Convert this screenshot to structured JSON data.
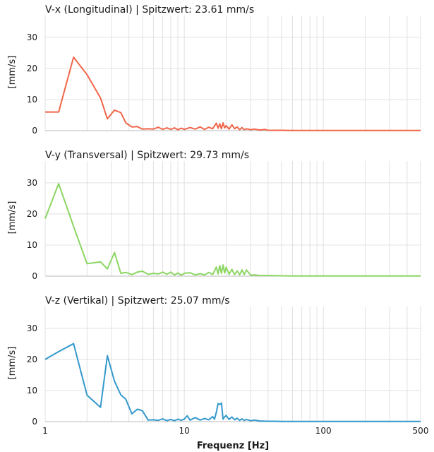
{
  "figure": {
    "xlabel": "Frequenz [Hz]",
    "x_ticks": [
      1,
      10,
      100,
      500
    ],
    "x_tick_labels": [
      "1",
      "10",
      "100",
      "500"
    ]
  },
  "chart_data": [
    {
      "type": "line",
      "title": "V-x (Longitudinal) | Spitzwert: 23.61 mm/s",
      "ylabel": "[mm/s]",
      "xscale": "log",
      "xlim": [
        1,
        500
      ],
      "ylim": [
        0,
        37
      ],
      "y_ticks": [
        0,
        10,
        20,
        30
      ],
      "grid": true,
      "color": "#f0664a",
      "x": [
        1.0,
        1.25,
        1.6,
        2.0,
        2.5,
        2.8,
        3.15,
        3.5,
        3.8,
        4.2,
        4.6,
        5.0,
        5.5,
        6.0,
        6.5,
        7.0,
        7.5,
        8.0,
        8.5,
        9.0,
        9.5,
        10,
        11,
        12,
        13,
        14,
        15,
        16,
        17,
        17.5,
        18,
        18.5,
        19,
        19.5,
        20,
        21,
        22,
        23,
        24,
        25,
        26,
        27,
        28,
        30,
        32,
        35,
        38,
        40,
        45,
        50,
        60,
        80,
        100,
        150,
        200,
        300,
        400,
        500
      ],
      "y": [
        6.0,
        6.0,
        23.61,
        18.0,
        10.5,
        3.8,
        6.6,
        5.8,
        2.5,
        1.2,
        1.3,
        0.5,
        0.6,
        0.5,
        1.1,
        0.4,
        0.9,
        0.4,
        0.9,
        0.3,
        0.8,
        0.4,
        1.0,
        0.5,
        1.2,
        0.4,
        1.1,
        0.6,
        2.4,
        0.8,
        2.2,
        0.6,
        2.5,
        0.9,
        1.6,
        0.5,
        1.9,
        0.6,
        1.2,
        0.3,
        1.0,
        0.3,
        0.6,
        0.3,
        0.5,
        0.2,
        0.4,
        0.1,
        0.1,
        0.1,
        0.05,
        0.05,
        0.05,
        0.05,
        0.05,
        0.05,
        0.05,
        0.05
      ]
    },
    {
      "type": "line",
      "title": "V-y (Transversal) | Spitzwert: 29.73 mm/s",
      "ylabel": "[mm/s]",
      "xscale": "log",
      "xlim": [
        1,
        500
      ],
      "ylim": [
        0,
        37
      ],
      "y_ticks": [
        0,
        10,
        20,
        30
      ],
      "grid": true,
      "color": "#8cd663",
      "x": [
        1.0,
        1.25,
        1.6,
        2.0,
        2.5,
        2.8,
        3.15,
        3.5,
        3.8,
        4.2,
        4.6,
        5.0,
        5.5,
        6.0,
        6.5,
        7.0,
        7.5,
        8.0,
        8.5,
        9.0,
        9.5,
        10,
        11,
        12,
        13,
        14,
        15,
        16,
        17,
        17.5,
        18,
        18.5,
        19,
        19.5,
        20,
        21,
        22,
        23,
        24,
        25,
        26,
        27,
        28,
        30,
        32,
        35,
        40,
        50,
        60,
        80,
        100,
        150,
        200,
        300,
        400,
        500
      ],
      "y": [
        18.5,
        29.73,
        16.0,
        4.0,
        4.6,
        2.3,
        7.6,
        0.9,
        1.2,
        0.5,
        1.3,
        1.6,
        0.6,
        0.9,
        0.7,
        1.3,
        0.6,
        1.3,
        0.4,
        1.0,
        0.3,
        0.9,
        1.1,
        0.4,
        0.8,
        0.4,
        1.2,
        0.5,
        2.9,
        0.7,
        3.4,
        0.9,
        3.6,
        1.0,
        2.9,
        0.6,
        2.2,
        0.5,
        1.7,
        0.4,
        2.0,
        0.5,
        2.0,
        0.3,
        0.4,
        0.2,
        0.2,
        0.1,
        0.05,
        0.05,
        0.05,
        0.05,
        0.05,
        0.05,
        0.05,
        0.05
      ]
    },
    {
      "type": "line",
      "title": "V-z (Vertikal) | Spitzwert: 25.07 mm/s",
      "ylabel": "[mm/s]",
      "xscale": "log",
      "xlim": [
        1,
        500
      ],
      "ylim": [
        0,
        37
      ],
      "y_ticks": [
        0,
        10,
        20,
        30
      ],
      "grid": true,
      "color": "#3399cc",
      "x": [
        1.0,
        1.25,
        1.6,
        2.0,
        2.5,
        2.8,
        3.15,
        3.5,
        3.8,
        4.2,
        4.6,
        5.0,
        5.5,
        6.0,
        6.5,
        7.0,
        7.5,
        8.0,
        8.5,
        9.0,
        9.5,
        10,
        10.5,
        11,
        12,
        13,
        14,
        15,
        16,
        16.5,
        17,
        17.5,
        18,
        18.5,
        19,
        19.5,
        20,
        21,
        22,
        23,
        24,
        25,
        26,
        27,
        28,
        30,
        32,
        35,
        40,
        45,
        50,
        60,
        80,
        100,
        150,
        200,
        300,
        400,
        500
      ],
      "y": [
        20.0,
        22.5,
        25.07,
        8.5,
        4.6,
        21.2,
        13.0,
        8.6,
        7.2,
        2.5,
        4.0,
        3.5,
        0.5,
        0.6,
        0.4,
        0.9,
        0.3,
        0.7,
        0.3,
        0.8,
        0.4,
        0.8,
        1.9,
        0.5,
        1.3,
        0.5,
        1.0,
        0.6,
        1.6,
        0.8,
        3.0,
        5.8,
        5.5,
        6.0,
        0.8,
        1.5,
        2.0,
        0.7,
        1.5,
        0.6,
        1.1,
        0.4,
        0.9,
        0.4,
        0.7,
        0.3,
        0.5,
        0.2,
        0.1,
        0.1,
        0.05,
        0.05,
        0.05,
        0.05,
        0.05,
        0.05,
        0.05,
        0.05,
        0.05
      ]
    }
  ]
}
